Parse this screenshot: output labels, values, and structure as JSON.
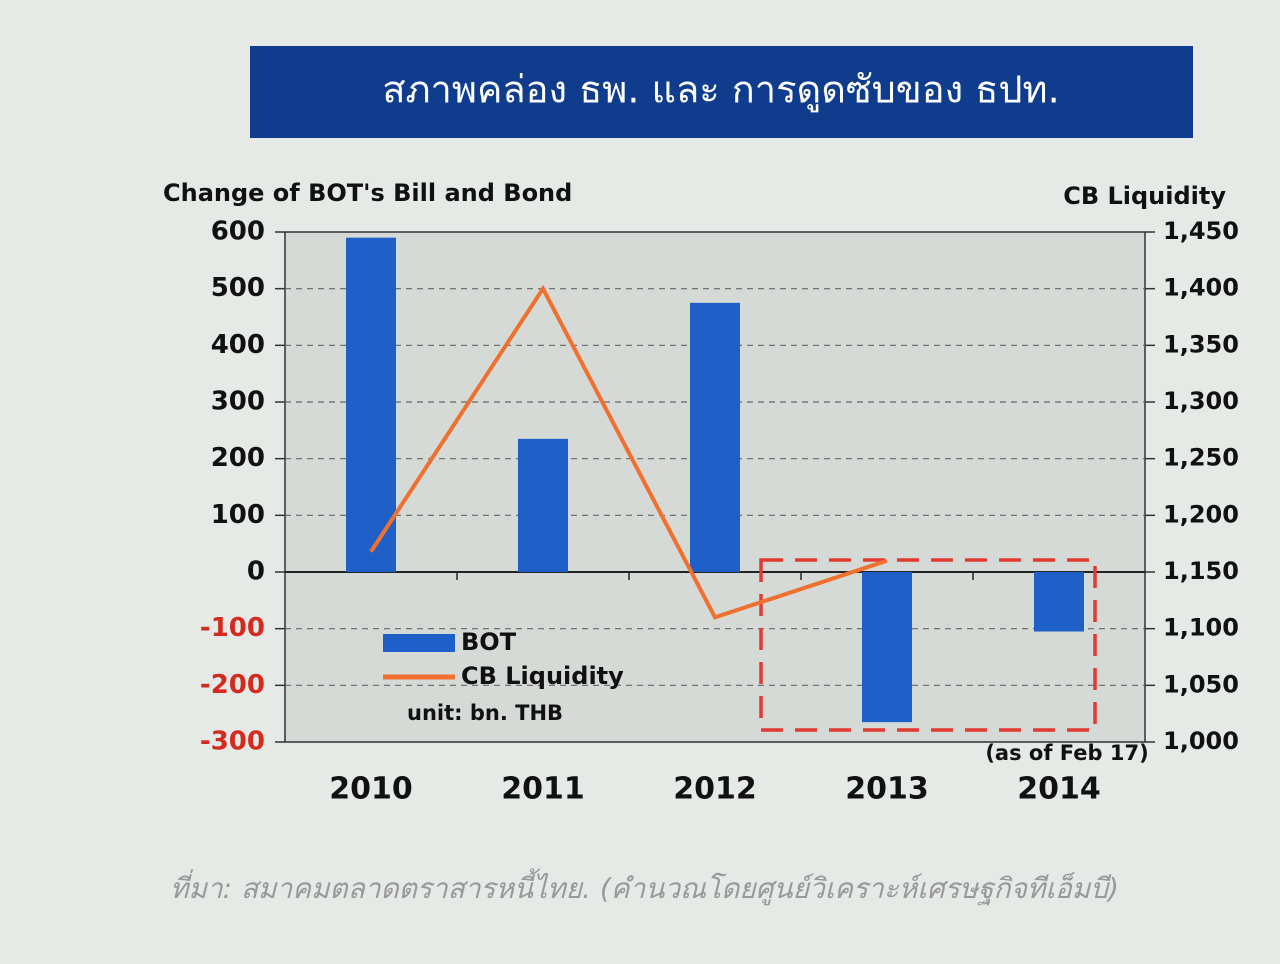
{
  "chart_data": {
    "type": "bar",
    "title": "สภาพคล่อง ธพ. และ การดูดซับของ ธปท.",
    "y_label": "Change of BOT's  Bill and Bond",
    "y2_label": "CB Liquidity",
    "categories": [
      "2010",
      "2011",
      "2012",
      "2013",
      "2014"
    ],
    "series": [
      {
        "name": "BOT",
        "color": "#1f5fc8",
        "type": "bar",
        "values": [
          590,
          235,
          475,
          -265,
          -105
        ]
      },
      {
        "name": "CB Liquidity",
        "color": "#f07030",
        "type": "line",
        "axis": "y2",
        "values": [
          1168,
          1400,
          1110,
          1160,
          null
        ]
      }
    ],
    "ylim": [
      -300,
      600
    ],
    "yticks": [
      -300,
      -200,
      -100,
      0,
      100,
      200,
      300,
      400,
      500,
      600
    ],
    "y2lim": [
      1000,
      1450
    ],
    "y2ticks": [
      {
        "value": 1000,
        "label": "1,000"
      },
      {
        "value": 1050,
        "label": "1,050"
      },
      {
        "value": 1100,
        "label": "1,100"
      },
      {
        "value": 1150,
        "label": "1,150"
      },
      {
        "value": 1200,
        "label": "1,200"
      },
      {
        "value": 1250,
        "label": "1,250"
      },
      {
        "value": 1300,
        "label": "1,300"
      },
      {
        "value": 1350,
        "label": "1,350"
      },
      {
        "value": 1400,
        "label": "1,400"
      },
      {
        "value": 1450,
        "label": "1,450"
      }
    ],
    "grid": true,
    "legend": "lower left",
    "unit_note": "unit: bn. THB",
    "annotation": "(as of Feb 17)",
    "source": "ที่มา: สมาคมตลาดตราสารหนี้ไทย. (คำนวณโดยศูนย์วิเคราะห์เศรษฐกิจทีเอ็มบี)"
  }
}
